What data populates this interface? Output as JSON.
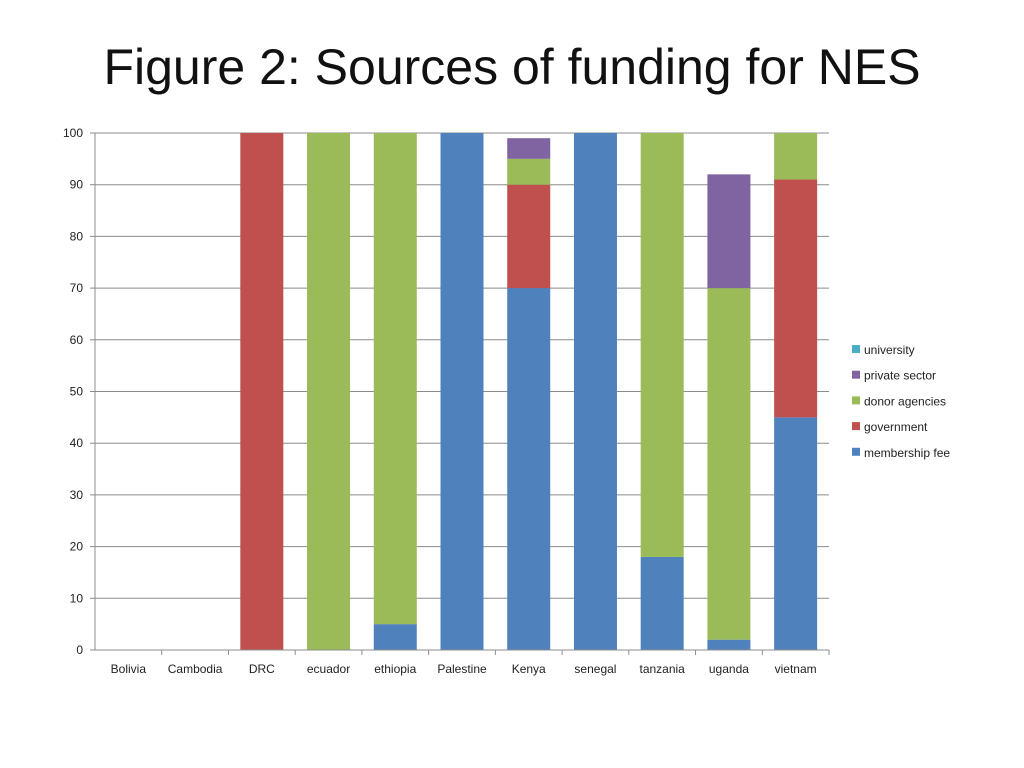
{
  "slide": {
    "title": "Figure 2: Sources of funding for NES"
  },
  "chart_data": {
    "type": "bar",
    "stacked": true,
    "title": "",
    "xlabel": "",
    "ylabel": "",
    "ylim": [
      0,
      100
    ],
    "yticks": [
      0,
      10,
      20,
      30,
      40,
      50,
      60,
      70,
      80,
      90,
      100
    ],
    "grid": true,
    "legend_position": "right",
    "categories": [
      "Bolivia",
      "Cambodia",
      "DRC",
      "ecuador",
      "ethiopia",
      "Palestine",
      "Kenya",
      "senegal",
      "tanzania",
      "uganda",
      "vietnam"
    ],
    "series": [
      {
        "name": "membership fee",
        "color": "#4f81bd",
        "values": [
          0,
          0,
          0,
          0,
          5,
          100,
          70,
          100,
          18,
          2,
          45
        ]
      },
      {
        "name": "government",
        "color": "#c0504d",
        "values": [
          0,
          0,
          100,
          0,
          0,
          0,
          20,
          0,
          0,
          0,
          46
        ]
      },
      {
        "name": "donor agencies",
        "color": "#9bbb59",
        "values": [
          0,
          0,
          0,
          100,
          95,
          0,
          5,
          0,
          82,
          68,
          9
        ]
      },
      {
        "name": "private sector",
        "color": "#8064a2",
        "values": [
          0,
          0,
          0,
          0,
          0,
          0,
          4,
          0,
          0,
          22,
          0
        ]
      },
      {
        "name": "university",
        "color": "#4bacc6",
        "values": [
          0,
          0,
          0,
          0,
          0,
          0,
          0,
          0,
          0,
          0,
          0
        ]
      }
    ],
    "legend_order": [
      "university",
      "private sector",
      "donor agencies",
      "government",
      "membership fee"
    ]
  }
}
